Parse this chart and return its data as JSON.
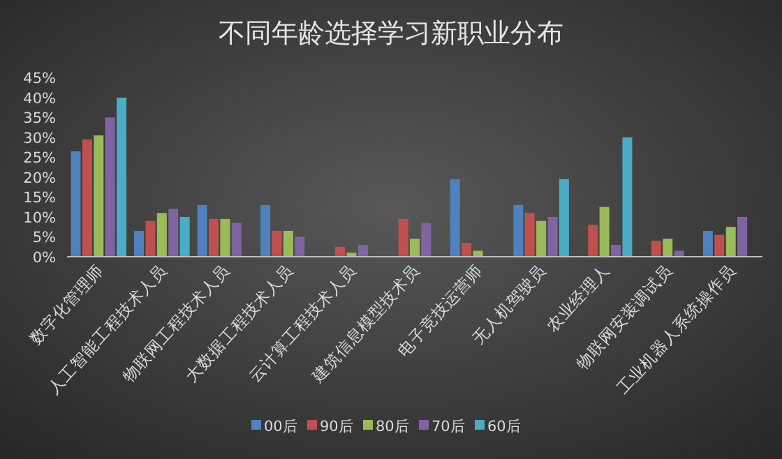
{
  "chart_data": {
    "type": "bar",
    "title": "不同年龄选择学习新职业分布",
    "categories": [
      "数字化管理师",
      "人工智能工程技术人员",
      "物联网工程技术人员",
      "大数据工程技术人员",
      "云计算工程技术人员",
      "建筑信息模型技术员",
      "电子竞技运营师",
      "无人机驾驶员",
      "农业经理人",
      "物联网安装调试员",
      "工业机器人系统操作员"
    ],
    "series": [
      {
        "name": "00后",
        "color": "#4f81bd",
        "values": [
          26.5,
          6.5,
          13,
          13,
          null,
          null,
          19.5,
          13,
          null,
          null,
          6.5
        ]
      },
      {
        "name": "90后",
        "color": "#c0504d",
        "values": [
          29.5,
          9,
          9.5,
          6.5,
          2.5,
          9.5,
          3.5,
          11,
          8,
          4,
          5.5
        ]
      },
      {
        "name": "80后",
        "color": "#9bbb59",
        "values": [
          30.5,
          11,
          9.5,
          6.5,
          1,
          4.5,
          1.5,
          9,
          12.5,
          4.5,
          7.5
        ]
      },
      {
        "name": "70后",
        "color": "#8064a2",
        "values": [
          35,
          12,
          8.5,
          5,
          3,
          8.5,
          null,
          10,
          3,
          1.5,
          10
        ]
      },
      {
        "name": "60后",
        "color": "#4bacc6",
        "values": [
          40,
          10,
          null,
          null,
          null,
          null,
          null,
          19.5,
          30,
          null,
          null
        ]
      }
    ],
    "ylim": [
      0,
      45
    ],
    "yticks": [
      {
        "value": 0,
        "label": "0%"
      },
      {
        "value": 5,
        "label": "5%"
      },
      {
        "value": 10,
        "label": "10%"
      },
      {
        "value": 15,
        "label": "15%"
      },
      {
        "value": 20,
        "label": "20%"
      },
      {
        "value": 25,
        "label": "25%"
      },
      {
        "value": 30,
        "label": "30%"
      },
      {
        "value": 35,
        "label": "35%"
      },
      {
        "value": 40,
        "label": "40%"
      },
      {
        "value": 45,
        "label": "45%"
      }
    ],
    "legend": "bottom"
  }
}
